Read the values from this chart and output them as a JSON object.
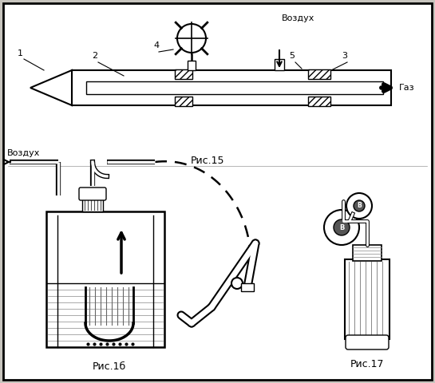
{
  "bg_color": "#c8c5be",
  "line_color": "#000000",
  "fig15_label": "Рис.15",
  "fig16_label": "Рис.1б",
  "fig17_label": "Рис.17",
  "vozduh_top": "Воздух",
  "vozduh_left": "Воздух",
  "gaz_label": "Газ",
  "num1": "1",
  "num2": "2",
  "num3": "3",
  "num4": "4",
  "num5": "5"
}
